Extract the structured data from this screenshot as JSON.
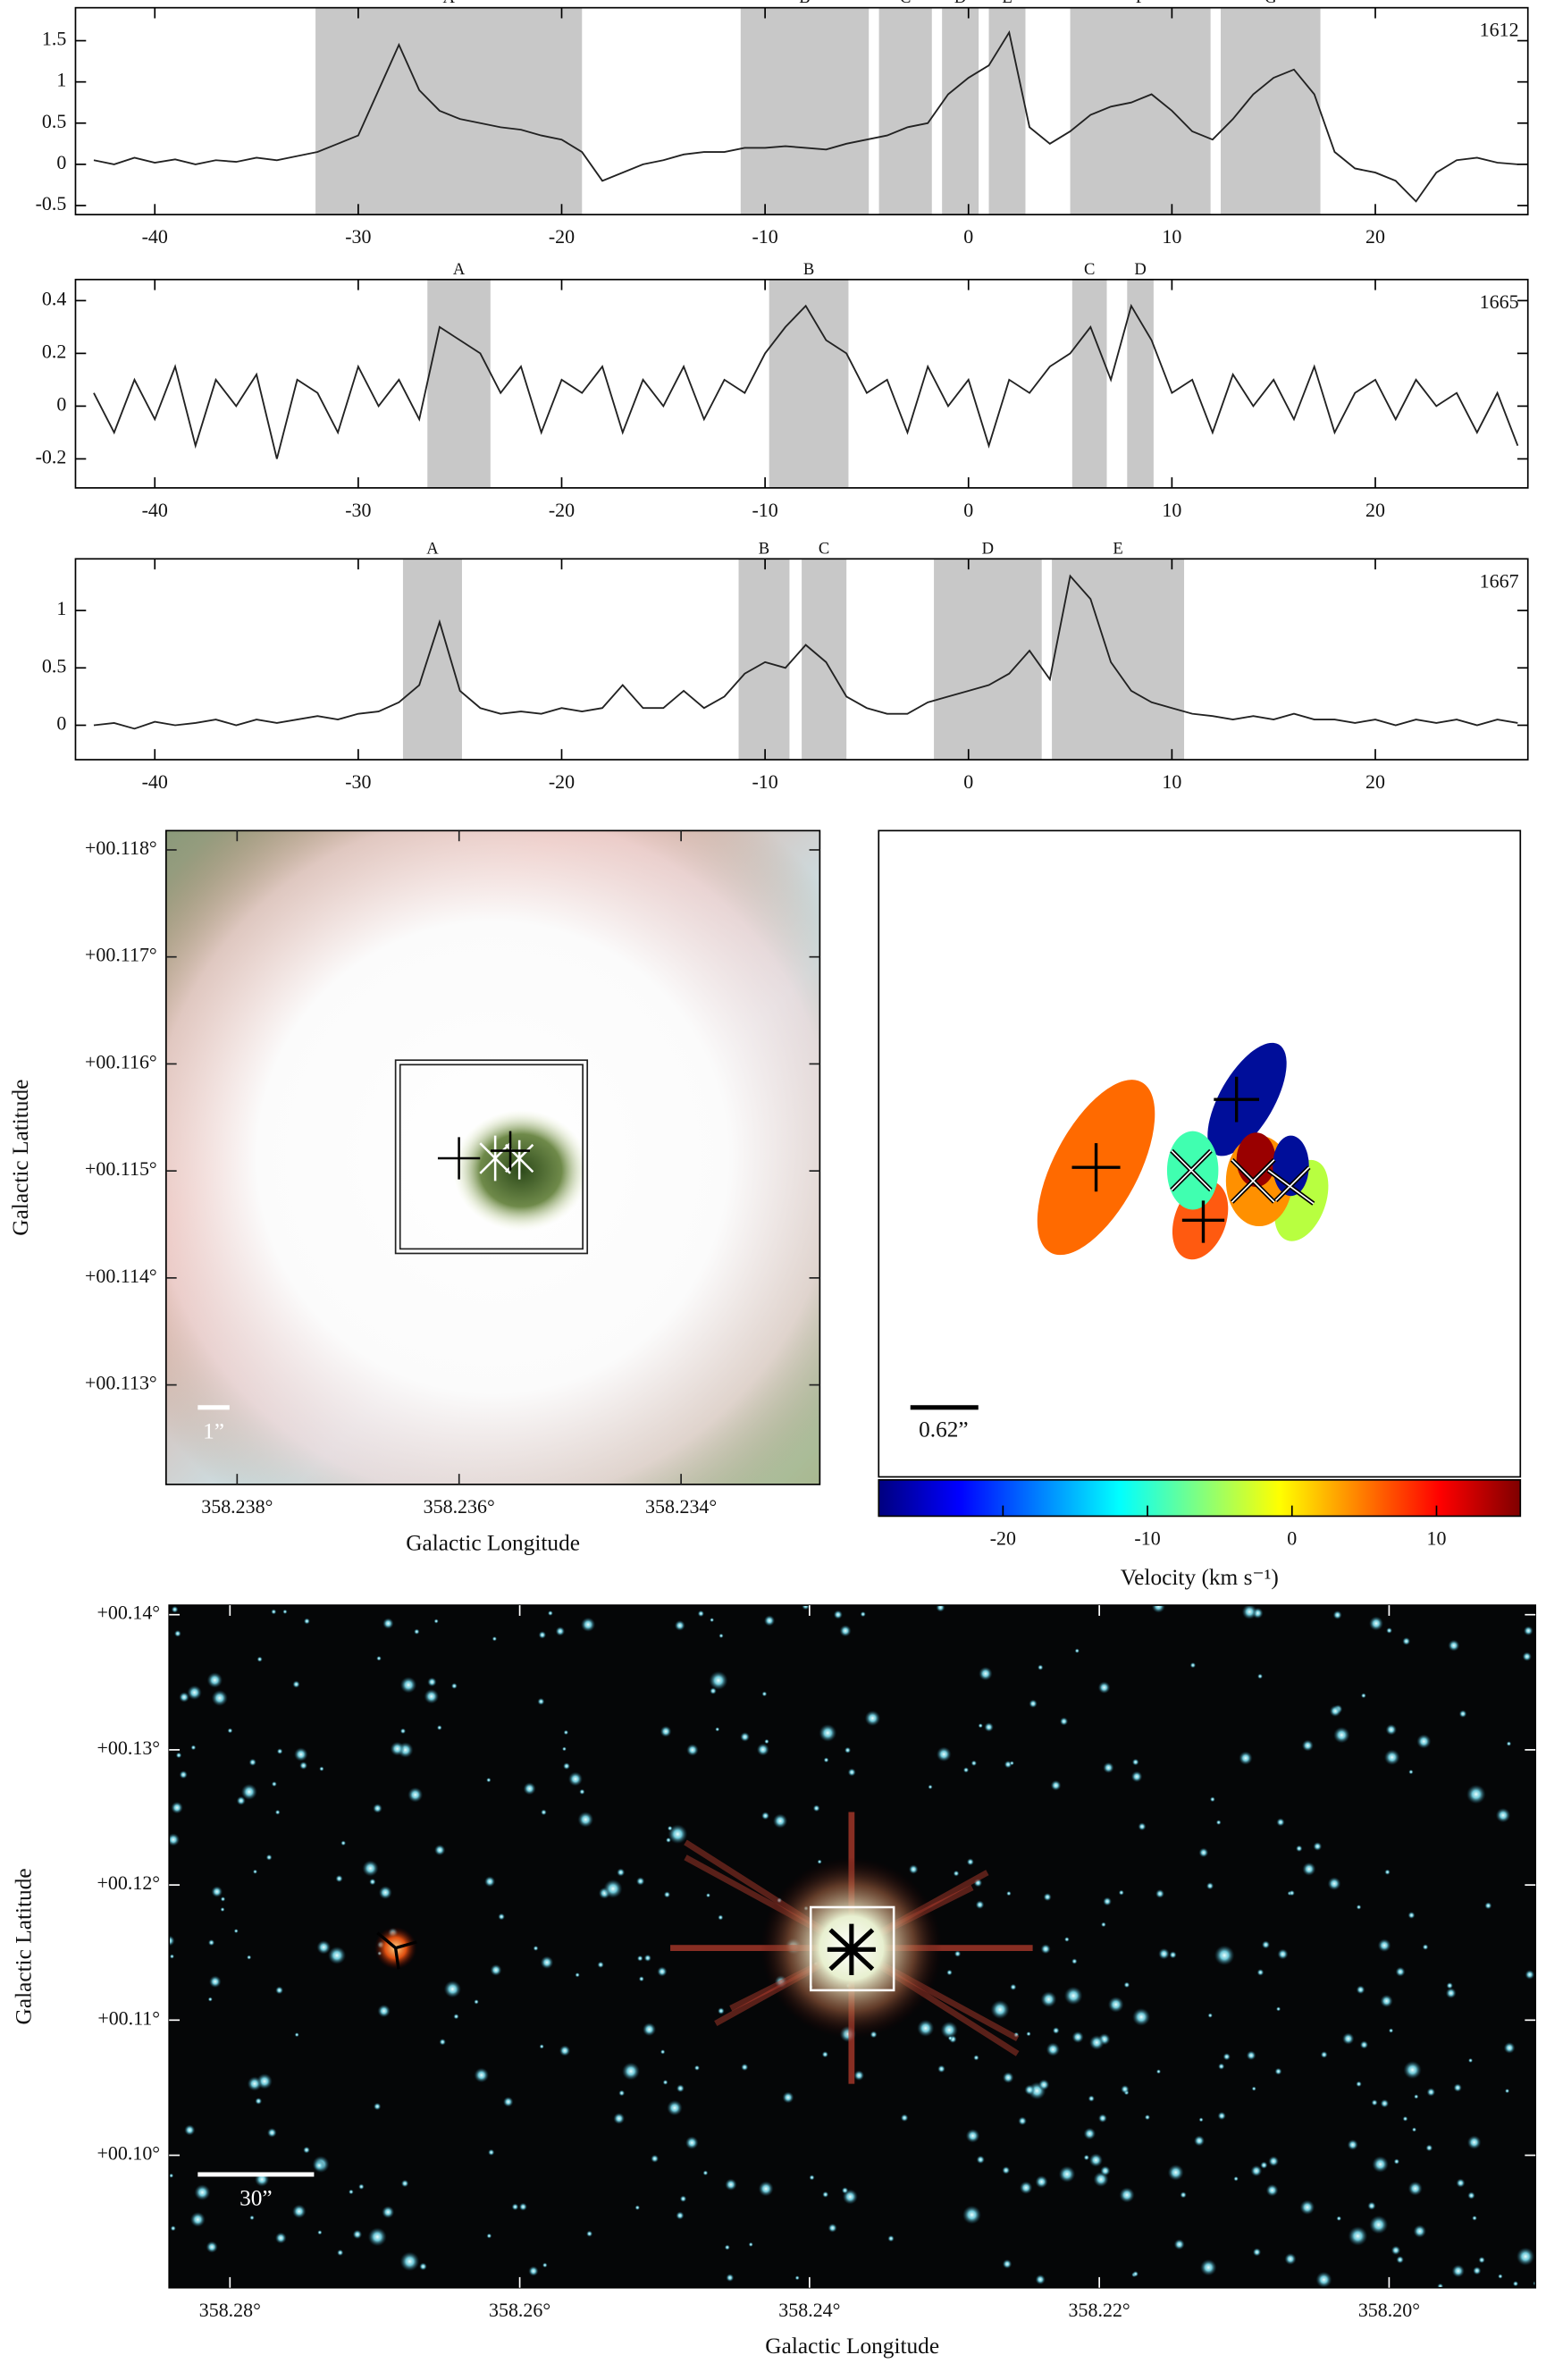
{
  "chart_data": [
    {
      "type": "spectrum",
      "label": "1612",
      "color": "#222",
      "xlim": [
        -43.9,
        27.5
      ],
      "ylim": [
        -0.61,
        1.9
      ],
      "xticks": [
        -40,
        -30,
        -20,
        -10,
        0,
        10,
        20
      ],
      "yticks": [
        -0.5,
        0,
        0.5,
        1,
        1.5
      ],
      "regions": [
        {
          "label": "A",
          "x": [
            -32.1,
            -19
          ]
        },
        {
          "label": "B",
          "x": [
            -11.2,
            -4.9
          ]
        },
        {
          "label": "C",
          "x": [
            -4.4,
            -1.8
          ]
        },
        {
          "label": "D",
          "x": [
            -1.3,
            0.5
          ]
        },
        {
          "label": "E",
          "x": [
            1,
            2.8
          ]
        },
        {
          "label": "F",
          "x": [
            5,
            11.9
          ]
        },
        {
          "label": "G",
          "x": [
            12.4,
            17.3
          ]
        }
      ],
      "x": [
        -43,
        -42,
        -41,
        -40,
        -39,
        -38,
        -37,
        -36,
        -35,
        -34,
        -33,
        -32,
        -31,
        -30,
        -29,
        -28,
        -27,
        -26,
        -25,
        -24,
        -23,
        -22,
        -21,
        -20,
        -19,
        -18,
        -17,
        -16,
        -15,
        -14,
        -13,
        -12,
        -11,
        -10,
        -9,
        -8,
        -7,
        -6,
        -5,
        -4,
        -3,
        -2,
        -1,
        0,
        1,
        2,
        3,
        4,
        5,
        6,
        7,
        8,
        9,
        10,
        11,
        12,
        13,
        14,
        15,
        16,
        17,
        18,
        19,
        20,
        21,
        22,
        23,
        24,
        25,
        26,
        27
      ],
      "values": [
        0.05,
        0,
        0.08,
        0.02,
        0.06,
        0,
        0.05,
        0.03,
        0.08,
        0.05,
        0.1,
        0.15,
        0.25,
        0.35,
        0.9,
        1.45,
        0.9,
        0.65,
        0.55,
        0.5,
        0.45,
        0.42,
        0.35,
        0.3,
        0.15,
        -0.2,
        -0.1,
        0,
        0.05,
        0.12,
        0.15,
        0.15,
        0.2,
        0.2,
        0.22,
        0.2,
        0.18,
        0.25,
        0.3,
        0.35,
        0.45,
        0.5,
        0.85,
        1.05,
        1.2,
        1.6,
        0.45,
        0.25,
        0.4,
        0.6,
        0.7,
        0.75,
        0.85,
        0.65,
        0.4,
        0.3,
        0.55,
        0.85,
        1.05,
        1.15,
        0.85,
        0.15,
        -0.05,
        -0.1,
        -0.2,
        -0.45,
        -0.1,
        0.05,
        0.08,
        0.02,
        0
      ]
    },
    {
      "type": "spectrum",
      "label": "1665",
      "color": "#222",
      "xlim": [
        -43.9,
        27.5
      ],
      "ylim": [
        -0.31,
        0.48
      ],
      "xticks": [
        -40,
        -30,
        -20,
        -10,
        0,
        10,
        20
      ],
      "yticks": [
        -0.2,
        0,
        0.2,
        0.4
      ],
      "regions": [
        {
          "label": "A",
          "x": [
            -26.6,
            -23.5
          ]
        },
        {
          "label": "B",
          "x": [
            -9.8,
            -5.9
          ]
        },
        {
          "label": "C",
          "x": [
            5.1,
            6.8
          ]
        },
        {
          "label": "D",
          "x": [
            7.8,
            9.1
          ]
        }
      ],
      "x": [
        -43,
        -42,
        -41,
        -40,
        -39,
        -38,
        -37,
        -36,
        -35,
        -34,
        -33,
        -32,
        -31,
        -30,
        -29,
        -28,
        -27,
        -26,
        -25,
        -24,
        -23,
        -22,
        -21,
        -20,
        -19,
        -18,
        -17,
        -16,
        -15,
        -14,
        -13,
        -12,
        -11,
        -10,
        -9,
        -8,
        -7,
        -6,
        -5,
        -4,
        -3,
        -2,
        -1,
        0,
        1,
        2,
        3,
        4,
        5,
        6,
        7,
        8,
        9,
        10,
        11,
        12,
        13,
        14,
        15,
        16,
        17,
        18,
        19,
        20,
        21,
        22,
        23,
        24,
        25,
        26,
        27
      ],
      "values": [
        0.05,
        -0.1,
        0.1,
        -0.05,
        0.15,
        -0.15,
        0.1,
        0,
        0.12,
        -0.2,
        0.1,
        0.05,
        -0.1,
        0.15,
        0,
        0.1,
        -0.05,
        0.3,
        0.25,
        0.2,
        0.05,
        0.15,
        -0.1,
        0.1,
        0.05,
        0.15,
        -0.1,
        0.1,
        0,
        0.15,
        -0.05,
        0.1,
        0.05,
        0.2,
        0.3,
        0.38,
        0.25,
        0.2,
        0.05,
        0.1,
        -0.1,
        0.15,
        0,
        0.1,
        -0.15,
        0.1,
        0.05,
        0.15,
        0.2,
        0.3,
        0.1,
        0.38,
        0.25,
        0.05,
        0.1,
        -0.1,
        0.12,
        0,
        0.1,
        -0.05,
        0.15,
        -0.1,
        0.05,
        0.1,
        -0.05,
        0.1,
        0,
        0.05,
        -0.1,
        0.05,
        -0.15
      ]
    },
    {
      "type": "spectrum",
      "label": "1667",
      "color": "#222",
      "xlim": [
        -43.9,
        27.5
      ],
      "ylim": [
        -0.3,
        1.45
      ],
      "xticks": [
        -40,
        -30,
        -20,
        -10,
        0,
        10,
        20
      ],
      "yticks": [
        0,
        0.5,
        1
      ],
      "regions": [
        {
          "label": "A",
          "x": [
            -27.8,
            -24.9
          ]
        },
        {
          "label": "B",
          "x": [
            -11.3,
            -8.8
          ]
        },
        {
          "label": "C",
          "x": [
            -8.2,
            -6
          ]
        },
        {
          "label": "D",
          "x": [
            -1.7,
            3.6
          ]
        },
        {
          "label": "E",
          "x": [
            4.1,
            10.6
          ]
        }
      ],
      "x": [
        -43,
        -42,
        -41,
        -40,
        -39,
        -38,
        -37,
        -36,
        -35,
        -34,
        -33,
        -32,
        -31,
        -30,
        -29,
        -28,
        -27,
        -26,
        -25,
        -24,
        -23,
        -22,
        -21,
        -20,
        -19,
        -18,
        -17,
        -16,
        -15,
        -14,
        -13,
        -12,
        -11,
        -10,
        -9,
        -8,
        -7,
        -6,
        -5,
        -4,
        -3,
        -2,
        -1,
        0,
        1,
        2,
        3,
        4,
        5,
        6,
        7,
        8,
        9,
        10,
        11,
        12,
        13,
        14,
        15,
        16,
        17,
        18,
        19,
        20,
        21,
        22,
        23,
        24,
        25,
        26,
        27
      ],
      "values": [
        0,
        0.02,
        -0.03,
        0.03,
        0,
        0.02,
        0.05,
        0,
        0.05,
        0.02,
        0.05,
        0.08,
        0.05,
        0.1,
        0.12,
        0.2,
        0.35,
        0.9,
        0.3,
        0.15,
        0.1,
        0.12,
        0.1,
        0.15,
        0.12,
        0.15,
        0.35,
        0.15,
        0.15,
        0.3,
        0.15,
        0.25,
        0.45,
        0.55,
        0.5,
        0.7,
        0.55,
        0.25,
        0.15,
        0.1,
        0.1,
        0.2,
        0.25,
        0.3,
        0.35,
        0.45,
        0.65,
        0.4,
        1.3,
        1.1,
        0.55,
        0.3,
        0.2,
        0.15,
        0.1,
        0.08,
        0.05,
        0.08,
        0.05,
        0.1,
        0.05,
        0.05,
        0.02,
        0.05,
        0,
        0.05,
        0.02,
        0.05,
        0,
        0.05,
        0.02
      ]
    },
    {
      "type": "image",
      "xlabel": "Galactic Longitude",
      "ylabel": "Galactic Latitude",
      "scale_bar": "1”",
      "xlim": [
        358.23864,
        358.23275
      ],
      "ylim": [
        0.11207,
        0.11818
      ],
      "xticks": [
        {
          "value": 358.238,
          "label": "358.238°"
        },
        {
          "value": 358.236,
          "label": "358.236°"
        },
        {
          "value": 358.234,
          "label": "358.234°"
        }
      ],
      "yticks": [
        {
          "value": 0.113,
          "label": "+00.113°"
        },
        {
          "value": 0.114,
          "label": "+00.114°"
        },
        {
          "value": 0.115,
          "label": "+00.115°"
        },
        {
          "value": 0.116,
          "label": "+00.116°"
        },
        {
          "value": 0.117,
          "label": "+00.117°"
        },
        {
          "value": 0.118,
          "label": "+00.118°"
        }
      ]
    },
    {
      "type": "colorbar",
      "xlabel": "Velocity (km s⁻¹)",
      "scale_bar": "0.62”",
      "xlim": [
        -28.6,
        15.8
      ],
      "xticks": [
        -20,
        -10,
        0,
        10
      ],
      "colormap": [
        "#00007f",
        "#0000ff",
        "#0080ff",
        "#00ffff",
        "#80ff80",
        "#ffff00",
        "#ff8000",
        "#ff0000",
        "#7f0000"
      ]
    },
    {
      "type": "image",
      "xlabel": "Galactic Longitude",
      "ylabel": "Galactic Latitude",
      "scale_bar": "30”",
      "xlim": [
        358.2842,
        358.1899
      ],
      "ylim": [
        0.0902,
        0.1407
      ],
      "xticks": [
        {
          "value": 358.28,
          "label": "358.28°"
        },
        {
          "value": 358.26,
          "label": "358.26°"
        },
        {
          "value": 358.24,
          "label": "358.24°"
        },
        {
          "value": 358.22,
          "label": "358.22°"
        },
        {
          "value": 358.2,
          "label": "358.20°"
        }
      ],
      "yticks": [
        {
          "value": 0.1,
          "label": "+00.10°"
        },
        {
          "value": 0.11,
          "label": "+00.11°"
        },
        {
          "value": 0.12,
          "label": "+00.12°"
        },
        {
          "value": 0.13,
          "label": "+00.13°"
        },
        {
          "value": 0.14,
          "label": "+00.14°"
        }
      ]
    }
  ]
}
